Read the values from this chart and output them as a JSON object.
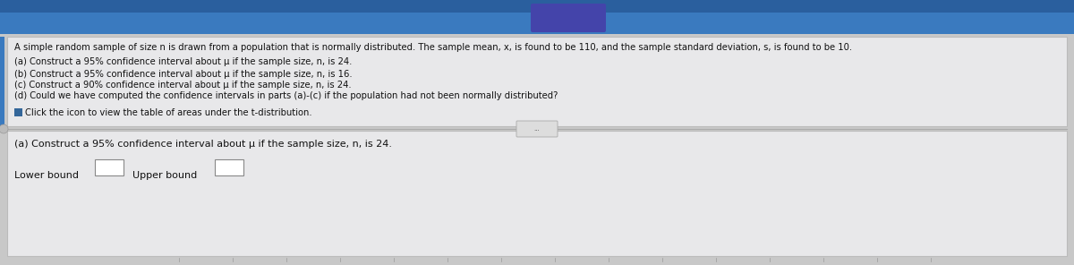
{
  "bg_top_color": "#3a7abf",
  "bg_gray": "#c8c8c8",
  "bg_panel": "#e8e8ea",
  "bg_lower_panel": "#e8e8ea",
  "text_color": "#111111",
  "line1": "A simple random sample of size n is drawn from a population that is normally distributed. The sample mean, x, is found to be 110, and the sample standard deviation, s, is found to be 10.",
  "line2": "(a) Construct a 95% confidence interval about μ if the sample size, n, is 24.",
  "line3": "(b) Construct a 95% confidence interval about μ if the sample size, n, is 16.",
  "line4": "(c) Construct a 90% confidence interval about μ if the sample size, n, is 24.",
  "line5": "(d) Could we have computed the confidence intervals in parts (a)-(c) if the population had not been normally distributed?",
  "line6": "Click the icon to view the table of areas under the t-distribution.",
  "bottom_line1": "(a) Construct a 95% confidence interval about μ if the sample size, n, is 24.",
  "divider_color": "#aaaaaa",
  "font_size_main": 7.2,
  "font_size_bottom": 8.0,
  "icon_color": "#336699",
  "btn_color": "#cccccc",
  "btn_text": "...",
  "input_box_color": "#ffffff",
  "input_box_edge": "#888888"
}
